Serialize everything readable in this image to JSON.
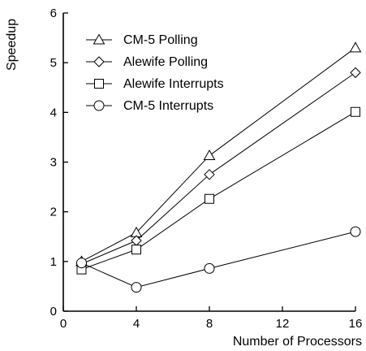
{
  "chart_data": {
    "type": "line",
    "title": "",
    "xlabel": "Number of Processors",
    "ylabel": "Speedup",
    "xlim": [
      0,
      16
    ],
    "ylim": [
      0,
      6
    ],
    "xticks": [
      0,
      4,
      8,
      12,
      16
    ],
    "yticks": [
      0,
      1,
      2,
      3,
      4,
      5,
      6
    ],
    "grid": false,
    "legend_position": "top-left",
    "series": [
      {
        "name": "CM-5 Polling",
        "marker": "triangle",
        "x": [
          1,
          4,
          8,
          16
        ],
        "y": [
          1.0,
          1.58,
          3.13,
          5.3
        ]
      },
      {
        "name": "Alewife Polling",
        "marker": "diamond",
        "x": [
          1,
          4,
          8,
          16
        ],
        "y": [
          0.95,
          1.42,
          2.75,
          4.8
        ]
      },
      {
        "name": "Alewife Interrupts",
        "marker": "square",
        "x": [
          1,
          4,
          8,
          16
        ],
        "y": [
          0.84,
          1.24,
          2.26,
          4.01
        ]
      },
      {
        "name": "CM-5 Interrupts",
        "marker": "circle",
        "x": [
          1,
          4,
          8,
          16
        ],
        "y": [
          0.97,
          0.48,
          0.86,
          1.6
        ]
      }
    ]
  }
}
